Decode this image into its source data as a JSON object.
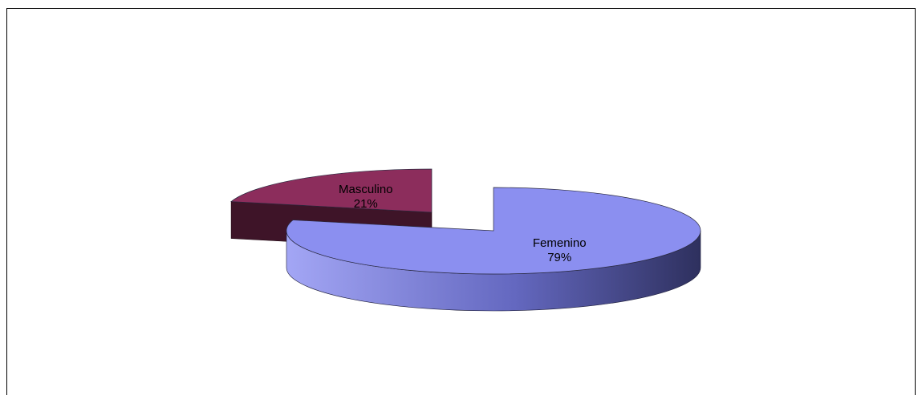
{
  "chart_data": {
    "type": "pie",
    "title": "",
    "style": "3d-exploded",
    "slices": [
      {
        "label": "Femenino",
        "value": 79,
        "value_label": "79%",
        "top_color": "#8b8ff0",
        "side_color": "#3a3d75"
      },
      {
        "label": "Masculino",
        "value": 21,
        "value_label": "21%",
        "top_color": "#8c2d5c",
        "side_color": "#3e1428"
      }
    ],
    "legend": "none",
    "labels_inside": true
  }
}
